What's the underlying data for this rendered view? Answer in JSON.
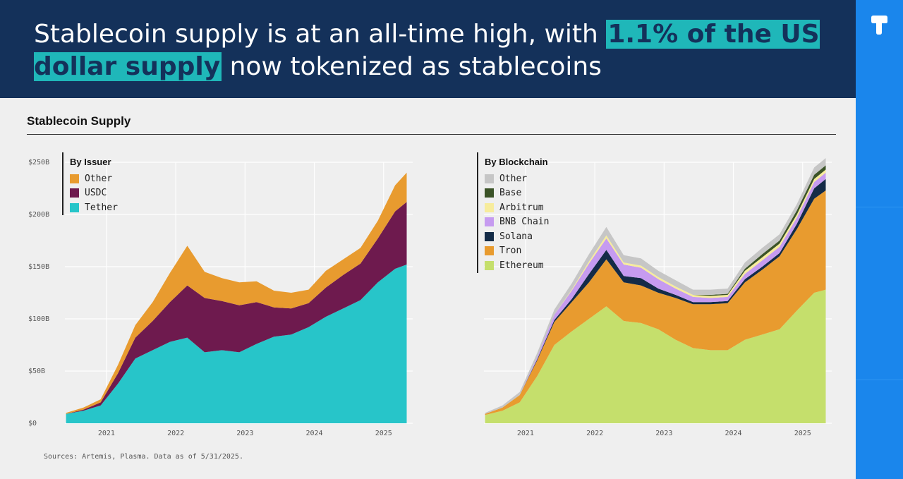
{
  "header": {
    "headline_pre": "Stablecoin supply is at an all-time high, with ",
    "headline_highlight": "1.1% of the US dollar supply",
    "headline_post": " now tokenized as stablecoins"
  },
  "section_title": "Stablecoin Supply",
  "source_note": "Sources: Artemis, Plasma. Data as of 5/31/2025.",
  "brand": {
    "logo_icon": "brand-logo-icon",
    "accent": "#1fb7b9",
    "header_bg": "#14315a",
    "sidebar_bg": "#1a86ec"
  },
  "chart_data": [
    {
      "type": "area",
      "stacked": true,
      "legend_title": "By Issuer",
      "legend_position": "top-left",
      "x": [
        "2020-06",
        "2020-09",
        "2020-12",
        "2021-03",
        "2021-06",
        "2021-09",
        "2021-12",
        "2022-03",
        "2022-06",
        "2022-09",
        "2022-12",
        "2023-03",
        "2023-06",
        "2023-09",
        "2023-12",
        "2024-03",
        "2024-06",
        "2024-09",
        "2024-12",
        "2025-03",
        "2025-05"
      ],
      "x_ticks": [
        "2021",
        "2022",
        "2023",
        "2024",
        "2025"
      ],
      "y_ticks": [
        "$0",
        "$50B",
        "$100B",
        "$150B",
        "$200B",
        "$250B"
      ],
      "ylim": [
        0,
        250
      ],
      "grid": true,
      "series": [
        {
          "name": "Tether",
          "color": "#27c5c9",
          "values": [
            9,
            12,
            17,
            38,
            62,
            70,
            78,
            82,
            68,
            70,
            68,
            76,
            83,
            85,
            92,
            102,
            110,
            118,
            135,
            148,
            152
          ]
        },
        {
          "name": "USDC",
          "color": "#6e1a4e",
          "values": [
            0,
            1,
            3,
            10,
            20,
            28,
            38,
            50,
            52,
            47,
            45,
            40,
            28,
            25,
            23,
            28,
            32,
            35,
            42,
            55,
            60
          ]
        },
        {
          "name": "Other",
          "color": "#e89b2f",
          "values": [
            1,
            2,
            3,
            8,
            12,
            18,
            28,
            38,
            25,
            22,
            22,
            20,
            16,
            15,
            13,
            16,
            15,
            15,
            17,
            25,
            28
          ]
        }
      ]
    },
    {
      "type": "area",
      "stacked": true,
      "legend_title": "By Blockchain",
      "legend_position": "top-left",
      "x": [
        "2020-06",
        "2020-09",
        "2020-12",
        "2021-03",
        "2021-06",
        "2021-09",
        "2021-12",
        "2022-03",
        "2022-06",
        "2022-09",
        "2022-12",
        "2023-03",
        "2023-06",
        "2023-09",
        "2023-12",
        "2024-03",
        "2024-06",
        "2024-09",
        "2024-12",
        "2025-03",
        "2025-05"
      ],
      "x_ticks": [
        "2021",
        "2022",
        "2023",
        "2024",
        "2025"
      ],
      "y_ticks": [],
      "ylim": [
        0,
        250
      ],
      "grid": true,
      "series": [
        {
          "name": "Ethereum",
          "color": "#c5df6c",
          "values": [
            8,
            12,
            20,
            45,
            75,
            88,
            100,
            112,
            98,
            96,
            90,
            80,
            72,
            70,
            70,
            80,
            85,
            90,
            108,
            125,
            128
          ]
        },
        {
          "name": "Tron",
          "color": "#e89b2f",
          "values": [
            1,
            3,
            7,
            15,
            22,
            28,
            35,
            45,
            37,
            36,
            35,
            40,
            42,
            44,
            45,
            55,
            62,
            70,
            78,
            90,
            95
          ]
        },
        {
          "name": "Solana",
          "color": "#142b47",
          "values": [
            0,
            0,
            0,
            1,
            2,
            3,
            8,
            9,
            6,
            7,
            4,
            3,
            2,
            2,
            2,
            3,
            3,
            3,
            5,
            10,
            11
          ]
        },
        {
          "name": "BNB Chain",
          "color": "#c69bf0",
          "values": [
            0,
            0,
            0,
            2,
            5,
            8,
            10,
            11,
            11,
            10,
            9,
            6,
            5,
            4,
            4,
            5,
            6,
            6,
            6,
            6,
            6
          ]
        },
        {
          "name": "Arbitrum",
          "color": "#f7ec9c",
          "values": [
            0,
            0,
            0,
            0,
            0,
            1,
            2,
            3,
            2,
            2,
            2,
            2,
            2,
            2,
            2,
            3,
            3,
            3,
            3,
            3,
            3
          ]
        },
        {
          "name": "Base",
          "color": "#3b5327",
          "values": [
            0,
            0,
            0,
            0,
            0,
            0,
            0,
            0,
            0,
            0,
            0,
            0,
            0,
            1,
            1,
            2,
            3,
            3,
            4,
            4,
            4
          ]
        },
        {
          "name": "Other",
          "color": "#c6c6c6",
          "values": [
            1,
            2,
            3,
            4,
            5,
            6,
            7,
            8,
            7,
            7,
            6,
            6,
            5,
            5,
            5,
            6,
            6,
            6,
            6,
            7,
            7
          ]
        }
      ]
    }
  ]
}
